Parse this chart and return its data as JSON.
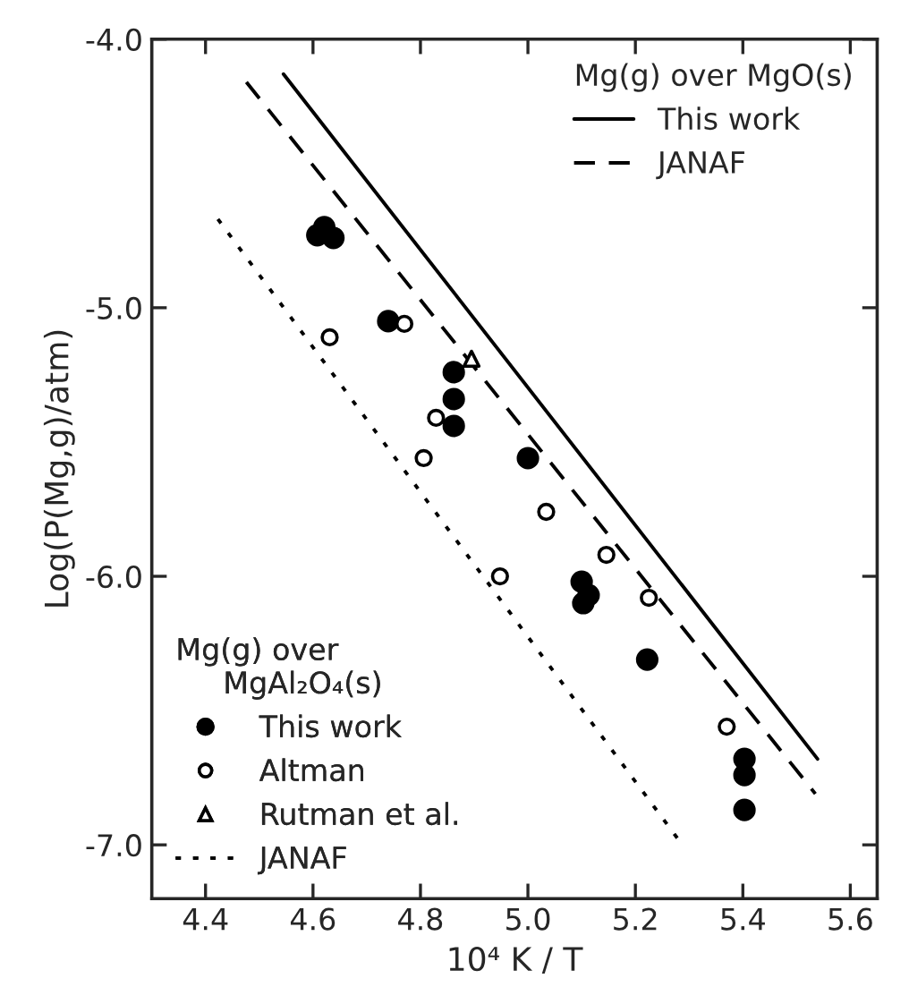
{
  "chart_data": {
    "type": "scatter",
    "xlabel": "10⁴ K / T",
    "ylabel": "Log(P(Mg,g)/atm)",
    "xlim": [
      4.3,
      5.65
    ],
    "ylim": [
      -7.2,
      -4.0
    ],
    "xticks": [
      4.4,
      4.6,
      4.8,
      {
        "value": 5.0,
        "label": "5.0"
      },
      5.2,
      5.4,
      5.6
    ],
    "yticks": [
      {
        "value": -4.0,
        "label": "-4.0"
      },
      {
        "value": -5.0,
        "label": "-5.0"
      },
      {
        "value": -6.0,
        "label": "-6.0"
      },
      {
        "value": -7.0,
        "label": "-7.0"
      }
    ],
    "legend": [
      "top right",
      "bottom left"
    ],
    "legend_title": [
      "Mg(g) over MgO(s)",
      "Mg(g) over\n     MgAl₂O₄(s)"
    ],
    "series": [
      {
        "name": "This work",
        "type": "line",
        "line_style": "solid",
        "color": "#000000",
        "x": [
          4.545,
          5.539
        ],
        "values": [
          -4.13,
          -6.68
        ]
      },
      {
        "name": "JANAF",
        "type": "line",
        "line_style": "dashed",
        "color": "#000000",
        "x": [
          4.476,
          5.535
        ],
        "values": [
          -4.16,
          -6.81
        ]
      },
      {
        "name": "This work",
        "marker": "circle",
        "color": "#000000",
        "x": [
          4.621,
          4.608,
          4.638,
          4.74,
          4.862,
          4.862,
          4.862,
          5.0,
          5.1,
          5.113,
          5.103,
          5.222,
          5.403,
          5.403,
          5.403
        ],
        "values": [
          -4.7,
          -4.73,
          -4.74,
          -5.05,
          -5.24,
          -5.34,
          -5.44,
          -5.56,
          -6.02,
          -6.07,
          -6.1,
          -6.31,
          -6.68,
          -6.74,
          -6.87
        ]
      },
      {
        "name": "Altman",
        "marker": "circle",
        "color": "#ffffff",
        "x": [
          4.631,
          4.77,
          4.829,
          4.806,
          5.034,
          4.948,
          5.146,
          5.225,
          5.37
        ],
        "values": [
          -5.11,
          -5.06,
          -5.41,
          -5.56,
          -5.76,
          -6.0,
          -5.92,
          -6.08,
          -6.56
        ]
      },
      {
        "name": "Rutman et al.",
        "marker": "triangle",
        "color": "#ffffff",
        "x": [
          4.895
        ],
        "values": [
          -5.19
        ]
      },
      {
        "name": "JANAF",
        "type": "line",
        "line_style": "dotted",
        "color": "#000000",
        "x": [
          4.423,
          5.28
        ],
        "values": [
          -4.67,
          -6.98
        ]
      }
    ]
  }
}
